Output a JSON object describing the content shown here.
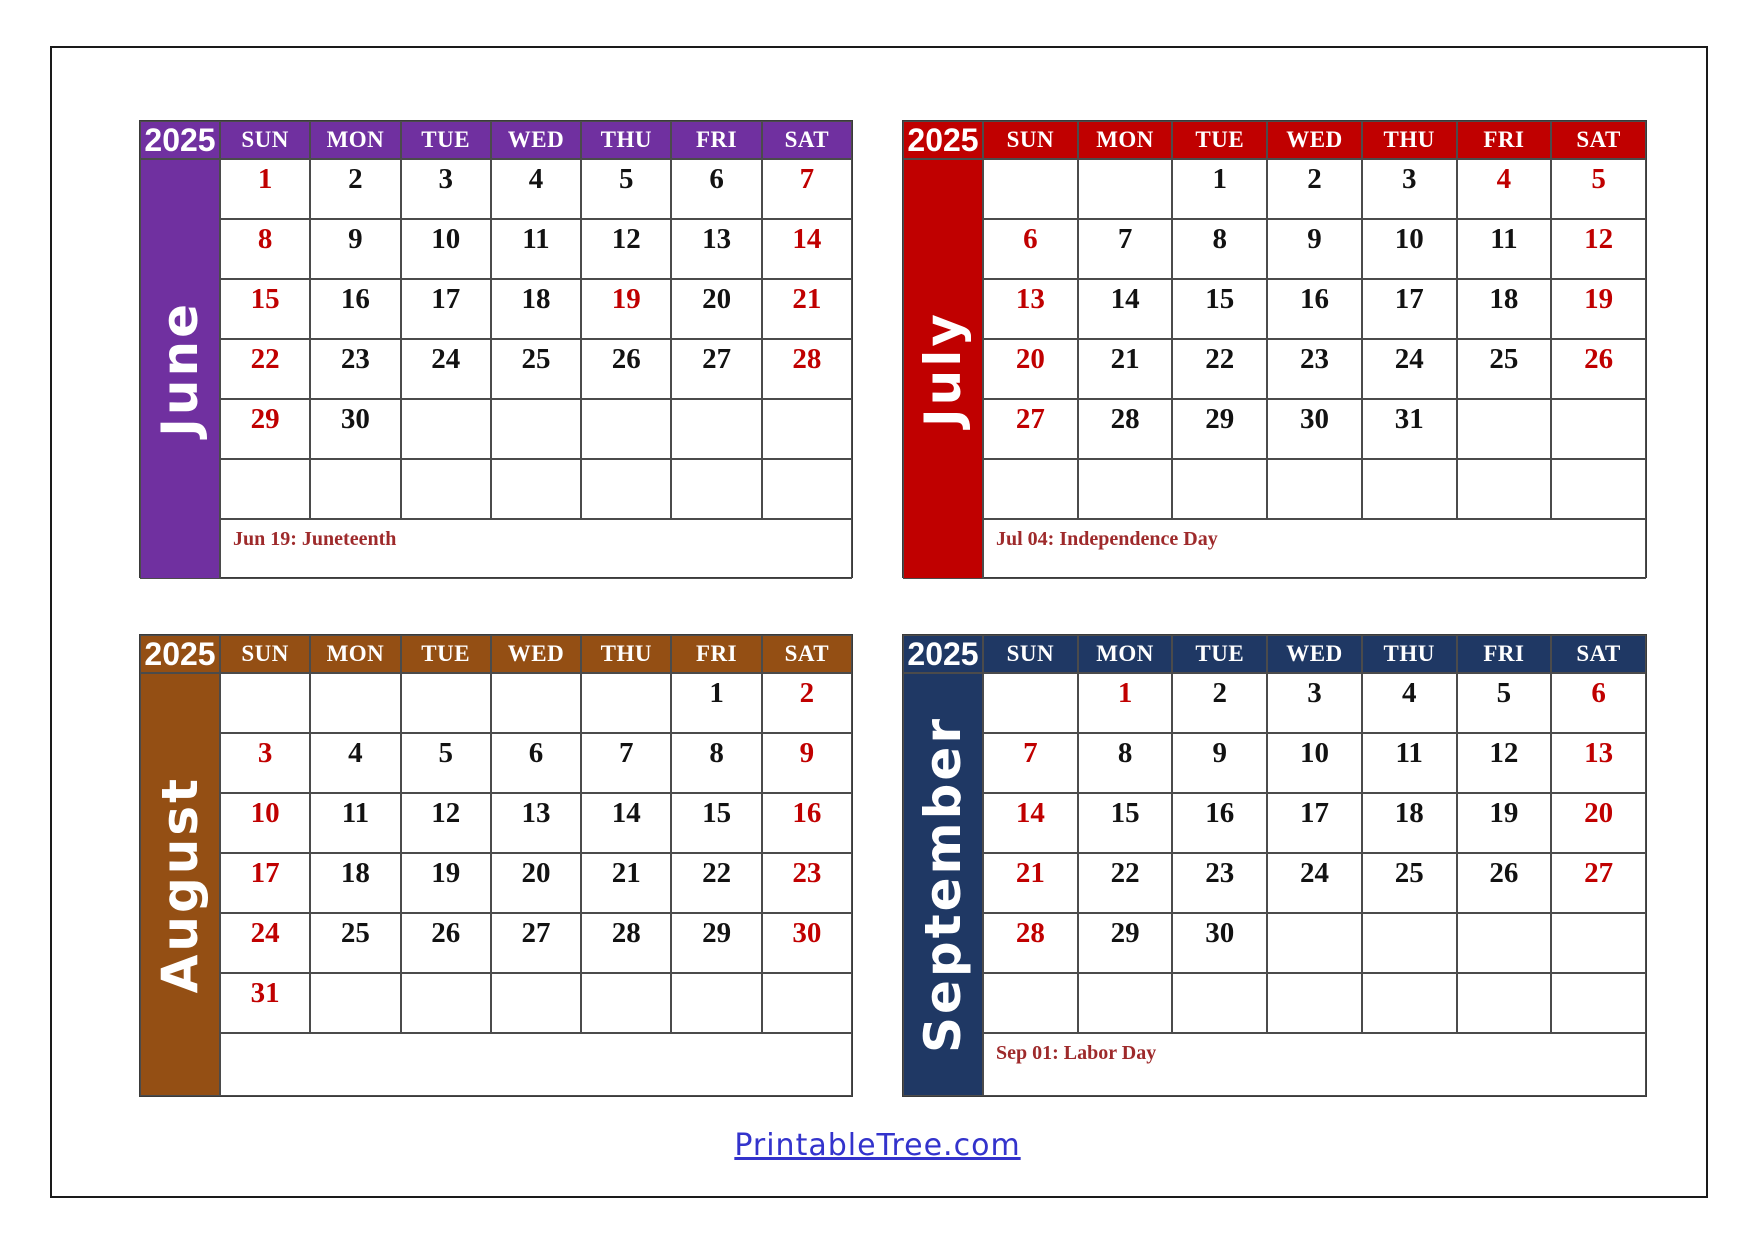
{
  "page": {
    "footer_link": "PrintableTree.com"
  },
  "colors": {
    "june_accent": "#7030A0",
    "july_accent": "#C00000",
    "august_accent": "#944F14",
    "september_accent": "#1F3864",
    "date_red": "#C00000",
    "date_black": "#121212",
    "holiday_text": "#9E2A2B",
    "footer_blue": "#3333CC",
    "grid_border": "#4b4b4b",
    "frame_border": "#1a1a1a"
  },
  "day_headers": [
    "SUN",
    "MON",
    "TUE",
    "WED",
    "THU",
    "FRI",
    "SAT"
  ],
  "months": [
    {
      "name": "June",
      "year": "2025",
      "accent": "#7030A0",
      "holiday_note": "Jun 19: Juneteenth",
      "weeks": [
        [
          "1",
          "2",
          "3",
          "4",
          "5",
          "6",
          "7"
        ],
        [
          "8",
          "9",
          "10",
          "11",
          "12",
          "13",
          "14"
        ],
        [
          "15",
          "16",
          "17",
          "18",
          "19",
          "20",
          "21"
        ],
        [
          "22",
          "23",
          "24",
          "25",
          "26",
          "27",
          "28"
        ],
        [
          "29",
          "30",
          "",
          "",
          "",
          "",
          ""
        ],
        [
          "",
          "",
          "",
          "",
          "",
          "",
          ""
        ]
      ],
      "red_days": [
        1,
        7,
        8,
        14,
        15,
        19,
        21,
        22,
        28,
        29
      ]
    },
    {
      "name": "July",
      "year": "2025",
      "accent": "#C00000",
      "holiday_note": "Jul 04: Independence Day",
      "weeks": [
        [
          "",
          "",
          "1",
          "2",
          "3",
          "4",
          "5"
        ],
        [
          "6",
          "7",
          "8",
          "9",
          "10",
          "11",
          "12"
        ],
        [
          "13",
          "14",
          "15",
          "16",
          "17",
          "18",
          "19"
        ],
        [
          "20",
          "21",
          "22",
          "23",
          "24",
          "25",
          "26"
        ],
        [
          "27",
          "28",
          "29",
          "30",
          "31",
          "",
          ""
        ],
        [
          "",
          "",
          "",
          "",
          "",
          "",
          ""
        ]
      ],
      "red_days": [
        4,
        5,
        6,
        12,
        13,
        19,
        20,
        26,
        27
      ]
    },
    {
      "name": "August",
      "year": "2025",
      "accent": "#944F14",
      "holiday_note": "",
      "weeks": [
        [
          "",
          "",
          "",
          "",
          "",
          "1",
          "2"
        ],
        [
          "3",
          "4",
          "5",
          "6",
          "7",
          "8",
          "9"
        ],
        [
          "10",
          "11",
          "12",
          "13",
          "14",
          "15",
          "16"
        ],
        [
          "17",
          "18",
          "19",
          "20",
          "21",
          "22",
          "23"
        ],
        [
          "24",
          "25",
          "26",
          "27",
          "28",
          "29",
          "30"
        ],
        [
          "31",
          "",
          "",
          "",
          "",
          "",
          ""
        ]
      ],
      "red_days": [
        2,
        3,
        9,
        10,
        16,
        17,
        23,
        24,
        30,
        31
      ]
    },
    {
      "name": "September",
      "year": "2025",
      "accent": "#1F3864",
      "holiday_note": "Sep 01: Labor Day",
      "weeks": [
        [
          "",
          "1",
          "2",
          "3",
          "4",
          "5",
          "6"
        ],
        [
          "7",
          "8",
          "9",
          "10",
          "11",
          "12",
          "13"
        ],
        [
          "14",
          "15",
          "16",
          "17",
          "18",
          "19",
          "20"
        ],
        [
          "21",
          "22",
          "23",
          "24",
          "25",
          "26",
          "27"
        ],
        [
          "28",
          "29",
          "30",
          "",
          "",
          "",
          ""
        ],
        [
          "",
          "",
          "",
          "",
          "",
          "",
          ""
        ]
      ],
      "red_days": [
        1,
        6,
        7,
        13,
        14,
        20,
        21,
        27,
        28
      ]
    }
  ]
}
